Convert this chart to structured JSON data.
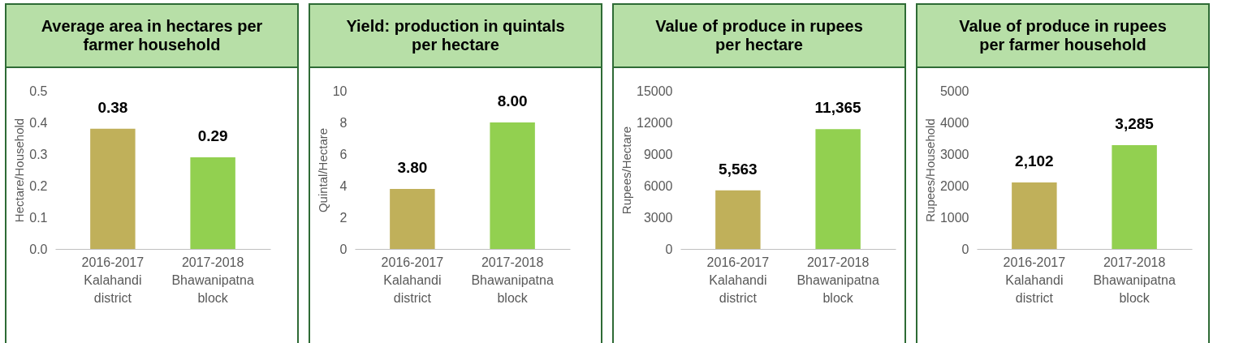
{
  "chart_data": [
    {
      "type": "bar",
      "title": "Average area in hectares per farmer household",
      "ylabel": "Hectare/Household",
      "categories": [
        "2016-2017\nKalahandi\ndistrict",
        "2017-2018\nBhawanipatna\nblock"
      ],
      "values": [
        0.38,
        0.29
      ],
      "colors": [
        "#c0b05a",
        "#92d050"
      ],
      "value_labels": [
        "0.38",
        "0.29"
      ],
      "ylim": [
        0,
        0.5
      ],
      "yticks": [
        {
          "value": 0,
          "label": "0.0"
        },
        0.1,
        0.2,
        0.3,
        0.4,
        0.5
      ]
    },
    {
      "type": "bar",
      "title": "Yield: production in quintals per hectare",
      "ylabel": "Quintal/Hectare",
      "categories": [
        "2016-2017\nKalahandi\ndistrict",
        "2017-2018\nBhawanipatna\nblock"
      ],
      "values": [
        3.8,
        8.0
      ],
      "colors": [
        "#c0b05a",
        "#92d050"
      ],
      "value_labels": [
        "3.80",
        "8.00"
      ],
      "ylim": [
        0,
        10
      ],
      "yticks": [
        0,
        2,
        4,
        6,
        8,
        10
      ]
    },
    {
      "type": "bar",
      "title": "Value of produce in rupees per hectare",
      "ylabel": "Rupees/Hectare",
      "categories": [
        "2016-2017\nKalahandi\ndistrict",
        "2017-2018\nBhawanipatna\nblock"
      ],
      "values": [
        5563,
        11365
      ],
      "colors": [
        "#c0b05a",
        "#92d050"
      ],
      "value_labels": [
        "5,563",
        "11,365"
      ],
      "ylim": [
        0,
        15000
      ],
      "yticks": [
        0,
        3000,
        6000,
        9000,
        12000,
        15000
      ]
    },
    {
      "type": "bar",
      "title": "Value of produce in rupees per farmer household",
      "ylabel": "Rupees/Household",
      "categories": [
        "2016-2017\nKalahandi\ndistrict",
        "2017-2018\nBhawanipatna\nblock"
      ],
      "values": [
        2102,
        3285
      ],
      "colors": [
        "#c0b05a",
        "#92d050"
      ],
      "value_labels": [
        "2,102",
        "3,285"
      ],
      "ylim": [
        0,
        5000
      ],
      "yticks": [
        0,
        1000,
        2000,
        3000,
        4000,
        5000
      ]
    }
  ]
}
